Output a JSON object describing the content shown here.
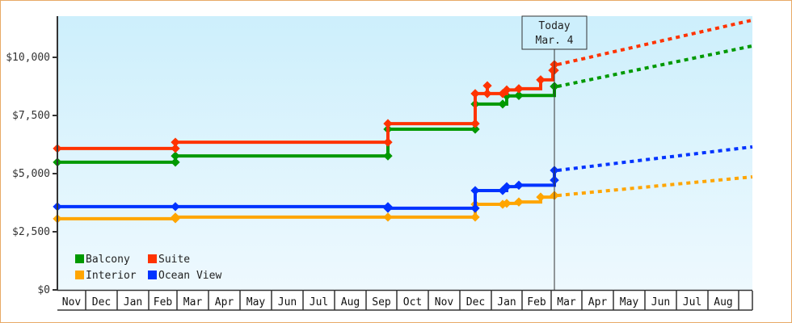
{
  "chart_data": {
    "type": "line",
    "title": "",
    "xlabel": "",
    "ylabel": "",
    "ylim": [
      0,
      12000
    ],
    "yticks": [
      "$0",
      "$2,500",
      "$5,000",
      "$7,500",
      "$10,000"
    ],
    "ytick_values": [
      0,
      2500,
      5000,
      7500,
      10000
    ],
    "x_months": [
      "Nov",
      "Dec",
      "Jan",
      "Feb",
      "Mar",
      "Apr",
      "May",
      "Jun",
      "Jul",
      "Aug",
      "Sep",
      "Oct",
      "Nov",
      "Dec",
      "Jan",
      "Feb",
      "Mar",
      "Apr",
      "May",
      "Jun",
      "Jul",
      "Aug",
      ""
    ],
    "grid": false,
    "legend_position": "bottom-left inside",
    "today_marker": {
      "line1": "Today",
      "line2": "Mar. 4"
    },
    "series": [
      {
        "name": "Balcony",
        "color": "#009900",
        "style": "step",
        "points": [
          {
            "x": "Nov",
            "value": 5490
          },
          {
            "x": "Feb",
            "value": 5490
          },
          {
            "x": "Feb",
            "value": 5760
          },
          {
            "x": "Sep",
            "value": 5760
          },
          {
            "x": "Sep",
            "value": 6910
          },
          {
            "x": "Dec",
            "value": 6910
          },
          {
            "x": "Dec",
            "value": 7990
          },
          {
            "x": "Jan",
            "value": 7990
          },
          {
            "x": "Jan",
            "value": 8340
          },
          {
            "x": "Jan",
            "value": 8360
          },
          {
            "x": "Feb",
            "value": 8360
          },
          {
            "x": "Feb",
            "value": 8750
          },
          {
            "x": "Mar 4",
            "value": 8750
          }
        ],
        "forecast": [
          {
            "x": "Mar 4",
            "value": 8750
          },
          {
            "x": "Aug end",
            "value": 10490
          }
        ]
      },
      {
        "name": "Suite",
        "color": "#ff3300",
        "style": "step",
        "points": [
          {
            "x": "Nov",
            "value": 6080
          },
          {
            "x": "Feb",
            "value": 6080
          },
          {
            "x": "Feb",
            "value": 6350
          },
          {
            "x": "Sep",
            "value": 6350
          },
          {
            "x": "Sep",
            "value": 7150
          },
          {
            "x": "Dec",
            "value": 7150
          },
          {
            "x": "Dec",
            "value": 8440
          },
          {
            "x": "Dec",
            "value": 8780
          },
          {
            "x": "Dec",
            "value": 8440
          },
          {
            "x": "Jan",
            "value": 8440
          },
          {
            "x": "Jan",
            "value": 8600
          },
          {
            "x": "Jan",
            "value": 8650
          },
          {
            "x": "Feb",
            "value": 8650
          },
          {
            "x": "Feb",
            "value": 9030
          },
          {
            "x": "Feb",
            "value": 9030
          },
          {
            "x": "Feb",
            "value": 9440
          },
          {
            "x": "Mar 4",
            "value": 9440
          },
          {
            "x": "Mar 4",
            "value": 9690
          }
        ],
        "forecast": [
          {
            "x": "Mar 4",
            "value": 9690
          },
          {
            "x": "Aug end",
            "value": 11600
          }
        ]
      },
      {
        "name": "Interior",
        "color": "#ffa500",
        "style": "step",
        "points": [
          {
            "x": "Nov",
            "value": 3060
          },
          {
            "x": "Feb",
            "value": 3060
          },
          {
            "x": "Feb",
            "value": 3130
          },
          {
            "x": "Sep",
            "value": 3130
          },
          {
            "x": "Dec",
            "value": 3130
          },
          {
            "x": "Dec",
            "value": 3680
          },
          {
            "x": "Jan",
            "value": 3680
          },
          {
            "x": "Jan",
            "value": 3720
          },
          {
            "x": "Jan",
            "value": 3780
          },
          {
            "x": "Feb",
            "value": 3780
          },
          {
            "x": "Feb",
            "value": 3990
          },
          {
            "x": "Feb",
            "value": 4060
          },
          {
            "x": "Mar 4",
            "value": 4060
          }
        ],
        "forecast": [
          {
            "x": "Mar 4",
            "value": 4060
          },
          {
            "x": "Aug end",
            "value": 4860
          }
        ]
      },
      {
        "name": "Ocean View",
        "color": "#0033ff",
        "style": "step",
        "points": [
          {
            "x": "Nov",
            "value": 3580
          },
          {
            "x": "Feb",
            "value": 3580
          },
          {
            "x": "Sep",
            "value": 3580
          },
          {
            "x": "Sep",
            "value": 3510
          },
          {
            "x": "Dec",
            "value": 3510
          },
          {
            "x": "Dec",
            "value": 4270
          },
          {
            "x": "Jan",
            "value": 4270
          },
          {
            "x": "Jan",
            "value": 4440
          },
          {
            "x": "Jan",
            "value": 4500
          },
          {
            "x": "Feb",
            "value": 4500
          },
          {
            "x": "Feb",
            "value": 4720
          },
          {
            "x": "Mar 4",
            "value": 4720
          },
          {
            "x": "Mar 4",
            "value": 5140
          }
        ],
        "forecast": [
          {
            "x": "Mar 4",
            "value": 5140
          },
          {
            "x": "Aug end",
            "value": 6150
          }
        ]
      }
    ]
  },
  "legend": [
    {
      "label": "Balcony",
      "color": "#009900"
    },
    {
      "label": "Suite",
      "color": "#ff3300"
    },
    {
      "label": "Interior",
      "color": "#ffa500"
    },
    {
      "label": "Ocean View",
      "color": "#0033ff"
    }
  ]
}
